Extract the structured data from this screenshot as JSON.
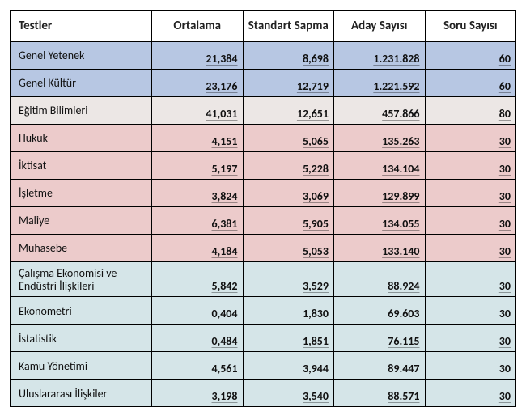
{
  "table": {
    "columns": [
      "Testler",
      "Ortalama",
      "Standart Sapma",
      "Aday Sayısı",
      "Soru Sayısı"
    ],
    "col_widths": [
      "28%",
      "18%",
      "18%",
      "18%",
      "18%"
    ],
    "header_bg": "#ffffff",
    "header_fontsize": 15,
    "body_fontsize": 14,
    "border_color": "#000000",
    "rows": [
      {
        "name": "Genel Yetenek",
        "bg": "#b7c7e3",
        "ortalama": "21,384",
        "sapma": "8,698",
        "aday": "1.231.828",
        "soru": "60"
      },
      {
        "name": "Genel Kültür",
        "bg": "#b7c7e3",
        "ortalama": "23,176",
        "sapma": "12,719",
        "aday": "1.221.592",
        "soru": "60"
      },
      {
        "name": "Eğitim Bilimleri",
        "bg": "#ece7e5",
        "ortalama": "41,031",
        "sapma": "12,651",
        "aday": "457.866",
        "soru": "80"
      },
      {
        "name": "Hukuk",
        "bg": "#eccbcb",
        "ortalama": "4,151",
        "sapma": "5,065",
        "aday": "135.263",
        "soru": "30"
      },
      {
        "name": "İktisat",
        "bg": "#eccbcb",
        "ortalama": "5,197",
        "sapma": "5,228",
        "aday": "134.104",
        "soru": "30"
      },
      {
        "name": "İşletme",
        "bg": "#eccbcb",
        "ortalama": "3,824",
        "sapma": "3,069",
        "aday": "129.899",
        "soru": "30"
      },
      {
        "name": "Maliye",
        "bg": "#eccbcb",
        "ortalama": "6,381",
        "sapma": "5,905",
        "aday": "134.055",
        "soru": "30"
      },
      {
        "name": "Muhasebe",
        "bg": "#eccbcb",
        "ortalama": "4,184",
        "sapma": "5,053",
        "aday": "133.140",
        "soru": "30"
      },
      {
        "name": "Çalışma Ekonomisi ve Endüstri İlişkileri",
        "bg": "#d5e5e8",
        "ortalama": "5,842",
        "sapma": "3,529",
        "aday": "88.924",
        "soru": "30"
      },
      {
        "name": "Ekonometri",
        "bg": "#d5e5e8",
        "ortalama": "0,404",
        "sapma": "1,830",
        "aday": "69.603",
        "soru": "30"
      },
      {
        "name": "İstatistik",
        "bg": "#d5e5e8",
        "ortalama": "0,484",
        "sapma": "1,851",
        "aday": "76.115",
        "soru": "30"
      },
      {
        "name": "Kamu Yönetimi",
        "bg": "#d5e5e8",
        "ortalama": "4,561",
        "sapma": "3,944",
        "aday": "89.447",
        "soru": "30"
      },
      {
        "name": "Uluslararası İlişkiler",
        "bg": "#d5e5e8",
        "ortalama": "3,198",
        "sapma": "3,540",
        "aday": "88.571",
        "soru": "30"
      }
    ]
  }
}
